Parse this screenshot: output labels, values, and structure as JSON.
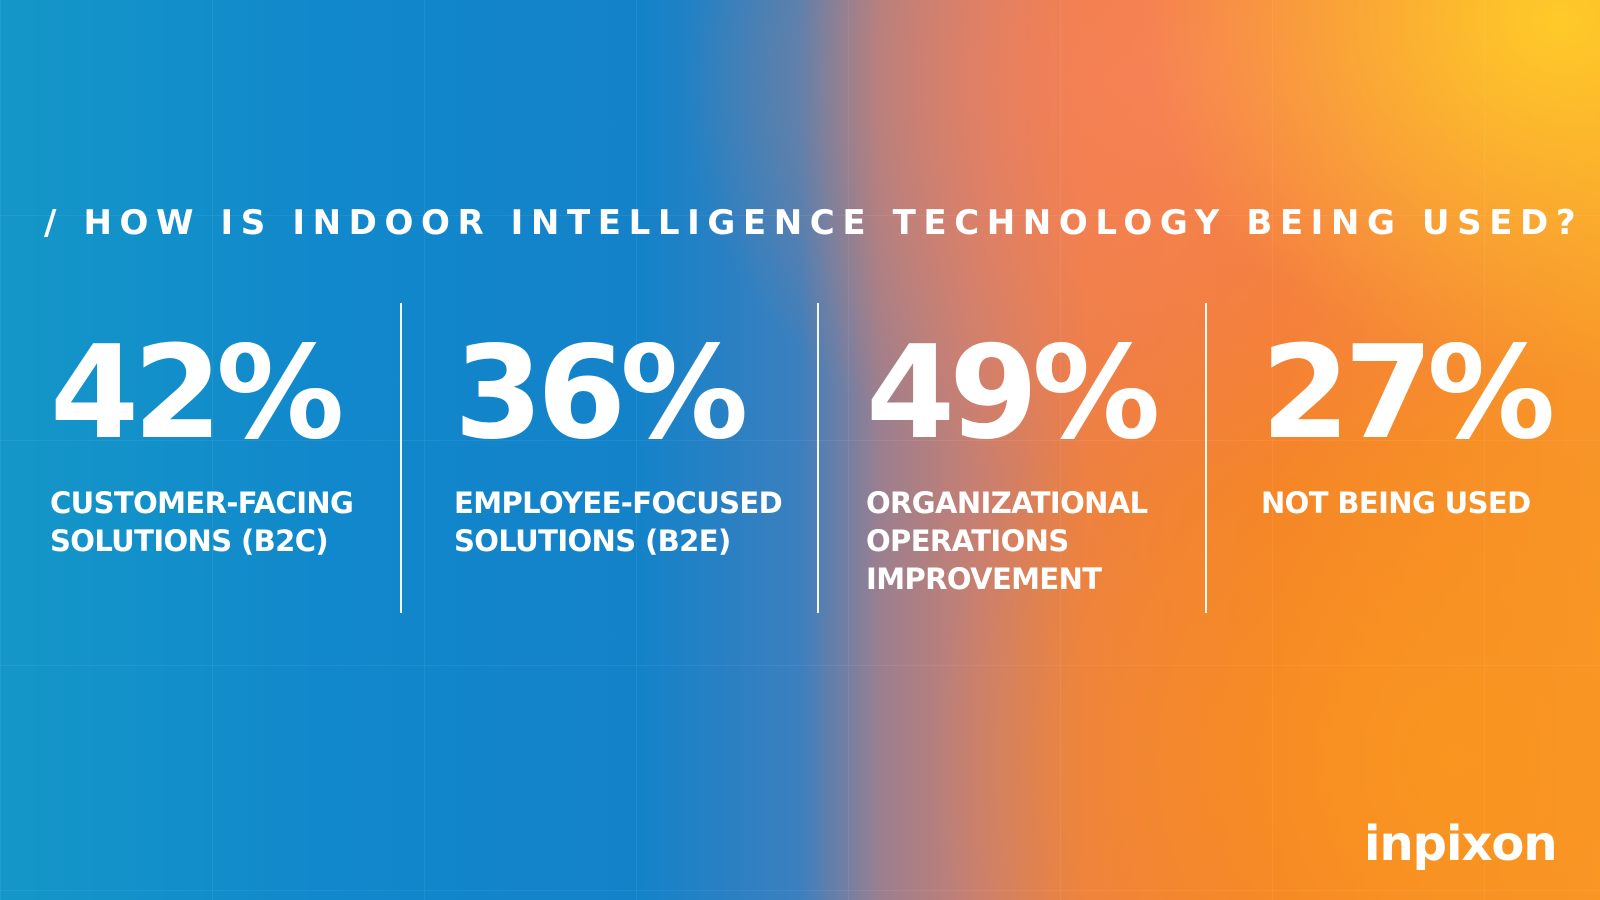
{
  "headline": "/ HOW IS INDOOR INTELLIGENCE TECHNOLOGY BEING USED?",
  "stats": [
    {
      "value": "42%",
      "label_lines": [
        "CUSTOMER-FACING",
        "SOLUTIONS (B2C)"
      ]
    },
    {
      "value": "36%",
      "label_lines": [
        "EMPLOYEE-FOCUSED",
        "SOLUTIONS (B2E)"
      ]
    },
    {
      "value": "49%",
      "label_lines": [
        "ORGANIZATIONAL",
        "OPERATIONS",
        "IMPROVEMENT"
      ]
    },
    {
      "value": "27%",
      "label_lines": [
        "NOT BEING USED"
      ]
    }
  ],
  "brand": {
    "logo_text": "inpixon",
    "colors": {
      "blue": "#1188cb",
      "orange": "#f27d2c",
      "yellow": "#ffcd28",
      "text": "#ffffff"
    }
  }
}
